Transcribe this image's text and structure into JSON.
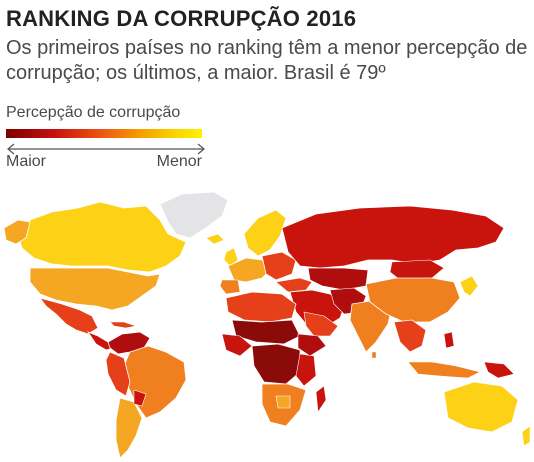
{
  "header": {
    "title": "RANKING DA CORRUPÇÃO 2016",
    "subtitle": "Os primeiros países no ranking têm a menor percepção de corrupção; os últimos, a maior. Brasil é 79º"
  },
  "legend": {
    "title": "Percepção de corrupção",
    "min_label": "Maior",
    "max_label": "Menor",
    "gradient": [
      "#7a0000",
      "#c81010",
      "#ee5a14",
      "#f6a300",
      "#f8d000",
      "#fff200"
    ]
  },
  "colors": {
    "most_corrupt": "#8b0a0a",
    "high": "#c8140c",
    "mid_high": "#e6401a",
    "mid": "#f07f1f",
    "low": "#f5a623",
    "least_corrupt": "#fcd116",
    "no_data": "#e4e4e6",
    "ocean": "#ffffff"
  }
}
